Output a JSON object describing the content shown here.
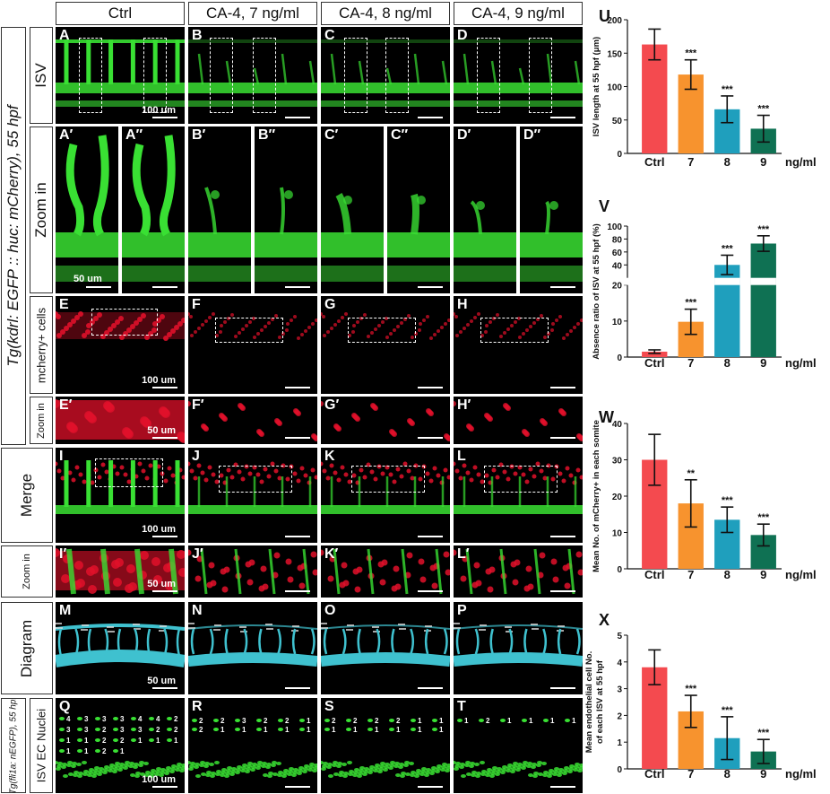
{
  "column_headers": [
    "Ctrl",
    "CA-4, 7 ng/ml",
    "CA-4, 8 ng/ml",
    "CA-4, 9 ng/ml"
  ],
  "side_label": "Tg(kdrl: EGFP :: huc: mCherry), 55 hpf",
  "row_labels": {
    "isv": "ISV",
    "zoom": "Zoom in",
    "mcherry": "mcherry+ cells",
    "zoom2": "Zoom in",
    "merge": "Merge",
    "zoom3": "Zoom in",
    "diagram": "Diagram",
    "nuclei": "ISV EC Nuclei",
    "nuclei_sub": "Tg(fli1a: nEGFP), 55 hpf"
  },
  "panel_labels": {
    "row1": [
      "A",
      "B",
      "C",
      "D"
    ],
    "row2": [
      "A′",
      "A″",
      "B′",
      "B″",
      "C′",
      "C″",
      "D′",
      "D″"
    ],
    "row3": [
      "E",
      "F",
      "G",
      "H"
    ],
    "row4": [
      "E′",
      "F′",
      "G′",
      "H′"
    ],
    "row5": [
      "I",
      "J",
      "K",
      "L"
    ],
    "row6": [
      "I′",
      "J′",
      "K′",
      "L′"
    ],
    "row7": [
      "M",
      "N",
      "O",
      "P"
    ],
    "row8": [
      "Q",
      "R",
      "S",
      "T"
    ]
  },
  "scale_bars": {
    "s100": "100 um",
    "s50": "50 um"
  },
  "nuclei_counts": {
    "Q": [
      "4",
      "3",
      "3",
      "3",
      "4",
      "4",
      "2",
      "3",
      "3",
      "2",
      "3",
      "3",
      "2",
      "2",
      "1",
      "1",
      "2",
      "2",
      "1",
      "1",
      "1",
      "1",
      "1",
      "2",
      "1"
    ],
    "R": [
      "2",
      "2",
      "3",
      "2",
      "2",
      "1",
      "2",
      "1",
      "1",
      "1",
      "1",
      "1"
    ],
    "S": [
      "2",
      "2",
      "2",
      "2",
      "1",
      "1",
      "1",
      "1",
      "1",
      "1",
      "1",
      "1"
    ],
    "T": [
      "1",
      "2",
      "1",
      "1",
      "1",
      "1"
    ]
  },
  "chart_data": [
    {
      "panel": "U",
      "type": "bar",
      "ylabel": "ISV length at 55 hpf (μm)",
      "xunit": "ng/ml",
      "categories": [
        "Ctrl",
        "7",
        "8",
        "9"
      ],
      "values": [
        163,
        118,
        66,
        37
      ],
      "errors": [
        23,
        22,
        20,
        20
      ],
      "sig": [
        "",
        "***",
        "***",
        "***"
      ],
      "ylim": [
        0,
        200
      ],
      "yticks": [
        0,
        50,
        100,
        150,
        200
      ]
    },
    {
      "panel": "V",
      "type": "bar",
      "ylabel": "Absence ratio of ISV at 55 hpf (%)",
      "xunit": "ng/ml",
      "categories": [
        "Ctrl",
        "7",
        "8",
        "9"
      ],
      "values": [
        1.5,
        9.8,
        40,
        73
      ],
      "errors": [
        0.5,
        3.5,
        15,
        12
      ],
      "sig": [
        "",
        "***",
        "***",
        "***"
      ],
      "ylim": [
        0,
        100
      ],
      "yticks": [
        0,
        10,
        20,
        40,
        60,
        80,
        100
      ],
      "axis_break": "20"
    },
    {
      "panel": "W",
      "type": "bar",
      "ylabel": "Mean No. of mCherry+ in each somite",
      "xunit": "ng/ml",
      "categories": [
        "Ctrl",
        "7",
        "8",
        "9"
      ],
      "values": [
        30,
        18,
        13.5,
        9.3
      ],
      "errors": [
        7,
        6.5,
        3.5,
        3
      ],
      "sig": [
        "",
        "**",
        "***",
        "***"
      ],
      "ylim": [
        0,
        40
      ],
      "yticks": [
        0,
        10,
        20,
        30,
        40
      ]
    },
    {
      "panel": "X",
      "type": "bar",
      "ylabel": "Mean endothelial cell No. of each ISV at 55 hpf",
      "xunit": "ng/ml",
      "categories": [
        "Ctrl",
        "7",
        "8",
        "9"
      ],
      "values": [
        3.8,
        2.15,
        1.15,
        0.65
      ],
      "errors": [
        0.65,
        0.6,
        0.8,
        0.45
      ],
      "sig": [
        "",
        "***",
        "***",
        "***"
      ],
      "ylim": [
        0,
        5
      ],
      "yticks": [
        0,
        1,
        2,
        3,
        4,
        5
      ]
    }
  ],
  "colors": {
    "ctrl": "#f44a4f",
    "c7": "#f7932e",
    "c8": "#1f9fbd",
    "c9": "#0f7153",
    "vessel": "#39e033",
    "cherry": "#e0102a",
    "diagram_vessel": "#3fc1cf"
  }
}
